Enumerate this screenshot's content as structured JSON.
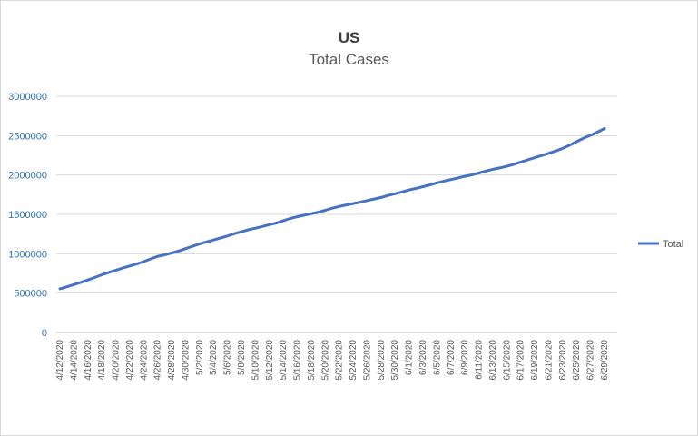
{
  "chart_data": {
    "type": "line",
    "title": "US",
    "subtitle": "Total Cases",
    "xlabel": "",
    "ylabel": "",
    "ylim": [
      0,
      3000000
    ],
    "yticks": [
      0,
      500000,
      1000000,
      1500000,
      2000000,
      2500000,
      3000000
    ],
    "ytick_labels": [
      "0",
      "500000",
      "1000000",
      "1500000",
      "2000000",
      "2500000",
      "3000000"
    ],
    "grid": true,
    "legend_position": "right",
    "series_color": "#4472c4",
    "x": [
      "4/12/2020",
      "4/13/2020",
      "4/14/2020",
      "4/15/2020",
      "4/16/2020",
      "4/17/2020",
      "4/18/2020",
      "4/19/2020",
      "4/20/2020",
      "4/21/2020",
      "4/22/2020",
      "4/23/2020",
      "4/24/2020",
      "4/25/2020",
      "4/26/2020",
      "4/27/2020",
      "4/28/2020",
      "4/29/2020",
      "4/30/2020",
      "5/1/2020",
      "5/2/2020",
      "5/3/2020",
      "5/4/2020",
      "5/5/2020",
      "5/6/2020",
      "5/7/2020",
      "5/8/2020",
      "5/9/2020",
      "5/10/2020",
      "5/11/2020",
      "5/12/2020",
      "5/13/2020",
      "5/14/2020",
      "5/15/2020",
      "5/16/2020",
      "5/17/2020",
      "5/18/2020",
      "5/19/2020",
      "5/20/2020",
      "5/21/2020",
      "5/22/2020",
      "5/23/2020",
      "5/24/2020",
      "5/25/2020",
      "5/26/2020",
      "5/27/2020",
      "5/28/2020",
      "5/29/2020",
      "5/30/2020",
      "5/31/2020",
      "6/1/2020",
      "6/2/2020",
      "6/3/2020",
      "6/4/2020",
      "6/5/2020",
      "6/6/2020",
      "6/7/2020",
      "6/8/2020",
      "6/9/2020",
      "6/10/2020",
      "6/11/2020",
      "6/12/2020",
      "6/13/2020",
      "6/14/2020",
      "6/15/2020",
      "6/16/2020",
      "6/17/2020",
      "6/18/2020",
      "6/19/2020",
      "6/20/2020",
      "6/21/2020",
      "6/22/2020",
      "6/23/2020",
      "6/24/2020",
      "6/25/2020",
      "6/26/2020",
      "6/27/2020",
      "6/28/2020",
      "6/29/2020"
    ],
    "x_tick_labels": [
      "4/12/2020",
      "4/14/2020",
      "4/16/2020",
      "4/18/2020",
      "4/20/2020",
      "4/22/2020",
      "4/24/2020",
      "4/26/2020",
      "4/28/2020",
      "4/30/2020",
      "5/2/2020",
      "5/4/2020",
      "5/6/2020",
      "5/8/2020",
      "5/10/2020",
      "5/12/2020",
      "5/14/2020",
      "5/16/2020",
      "5/18/2020",
      "5/20/2020",
      "5/22/2020",
      "5/24/2020",
      "5/26/2020",
      "5/28/2020",
      "5/30/2020",
      "6/1/2020",
      "6/3/2020",
      "6/5/2020",
      "6/7/2020",
      "6/9/2020",
      "6/11/2020",
      "6/13/2020",
      "6/15/2020",
      "6/17/2020",
      "6/19/2020",
      "6/21/2020",
      "6/23/2020",
      "6/25/2020",
      "6/27/2020",
      "6/29/2020"
    ],
    "series": [
      {
        "name": "Total",
        "values": [
          555000,
          580000,
          608000,
          637000,
          667000,
          699000,
          733000,
          763000,
          789000,
          818000,
          845000,
          870000,
          900000,
          935000,
          967000,
          985000,
          1010000,
          1035000,
          1065000,
          1095000,
          1125000,
          1150000,
          1175000,
          1200000,
          1225000,
          1255000,
          1280000,
          1305000,
          1325000,
          1347000,
          1370000,
          1390000,
          1420000,
          1448000,
          1470000,
          1490000,
          1508000,
          1528000,
          1552000,
          1578000,
          1600000,
          1620000,
          1637000,
          1655000,
          1675000,
          1695000,
          1715000,
          1740000,
          1762000,
          1785000,
          1810000,
          1830000,
          1852000,
          1875000,
          1900000,
          1922000,
          1942000,
          1963000,
          1983000,
          2002000,
          2025000,
          2050000,
          2072000,
          2090000,
          2110000,
          2135000,
          2165000,
          2192000,
          2220000,
          2248000,
          2275000,
          2304000,
          2338000,
          2378000,
          2423000,
          2468000,
          2505000,
          2545000,
          2590000
        ]
      }
    ]
  }
}
